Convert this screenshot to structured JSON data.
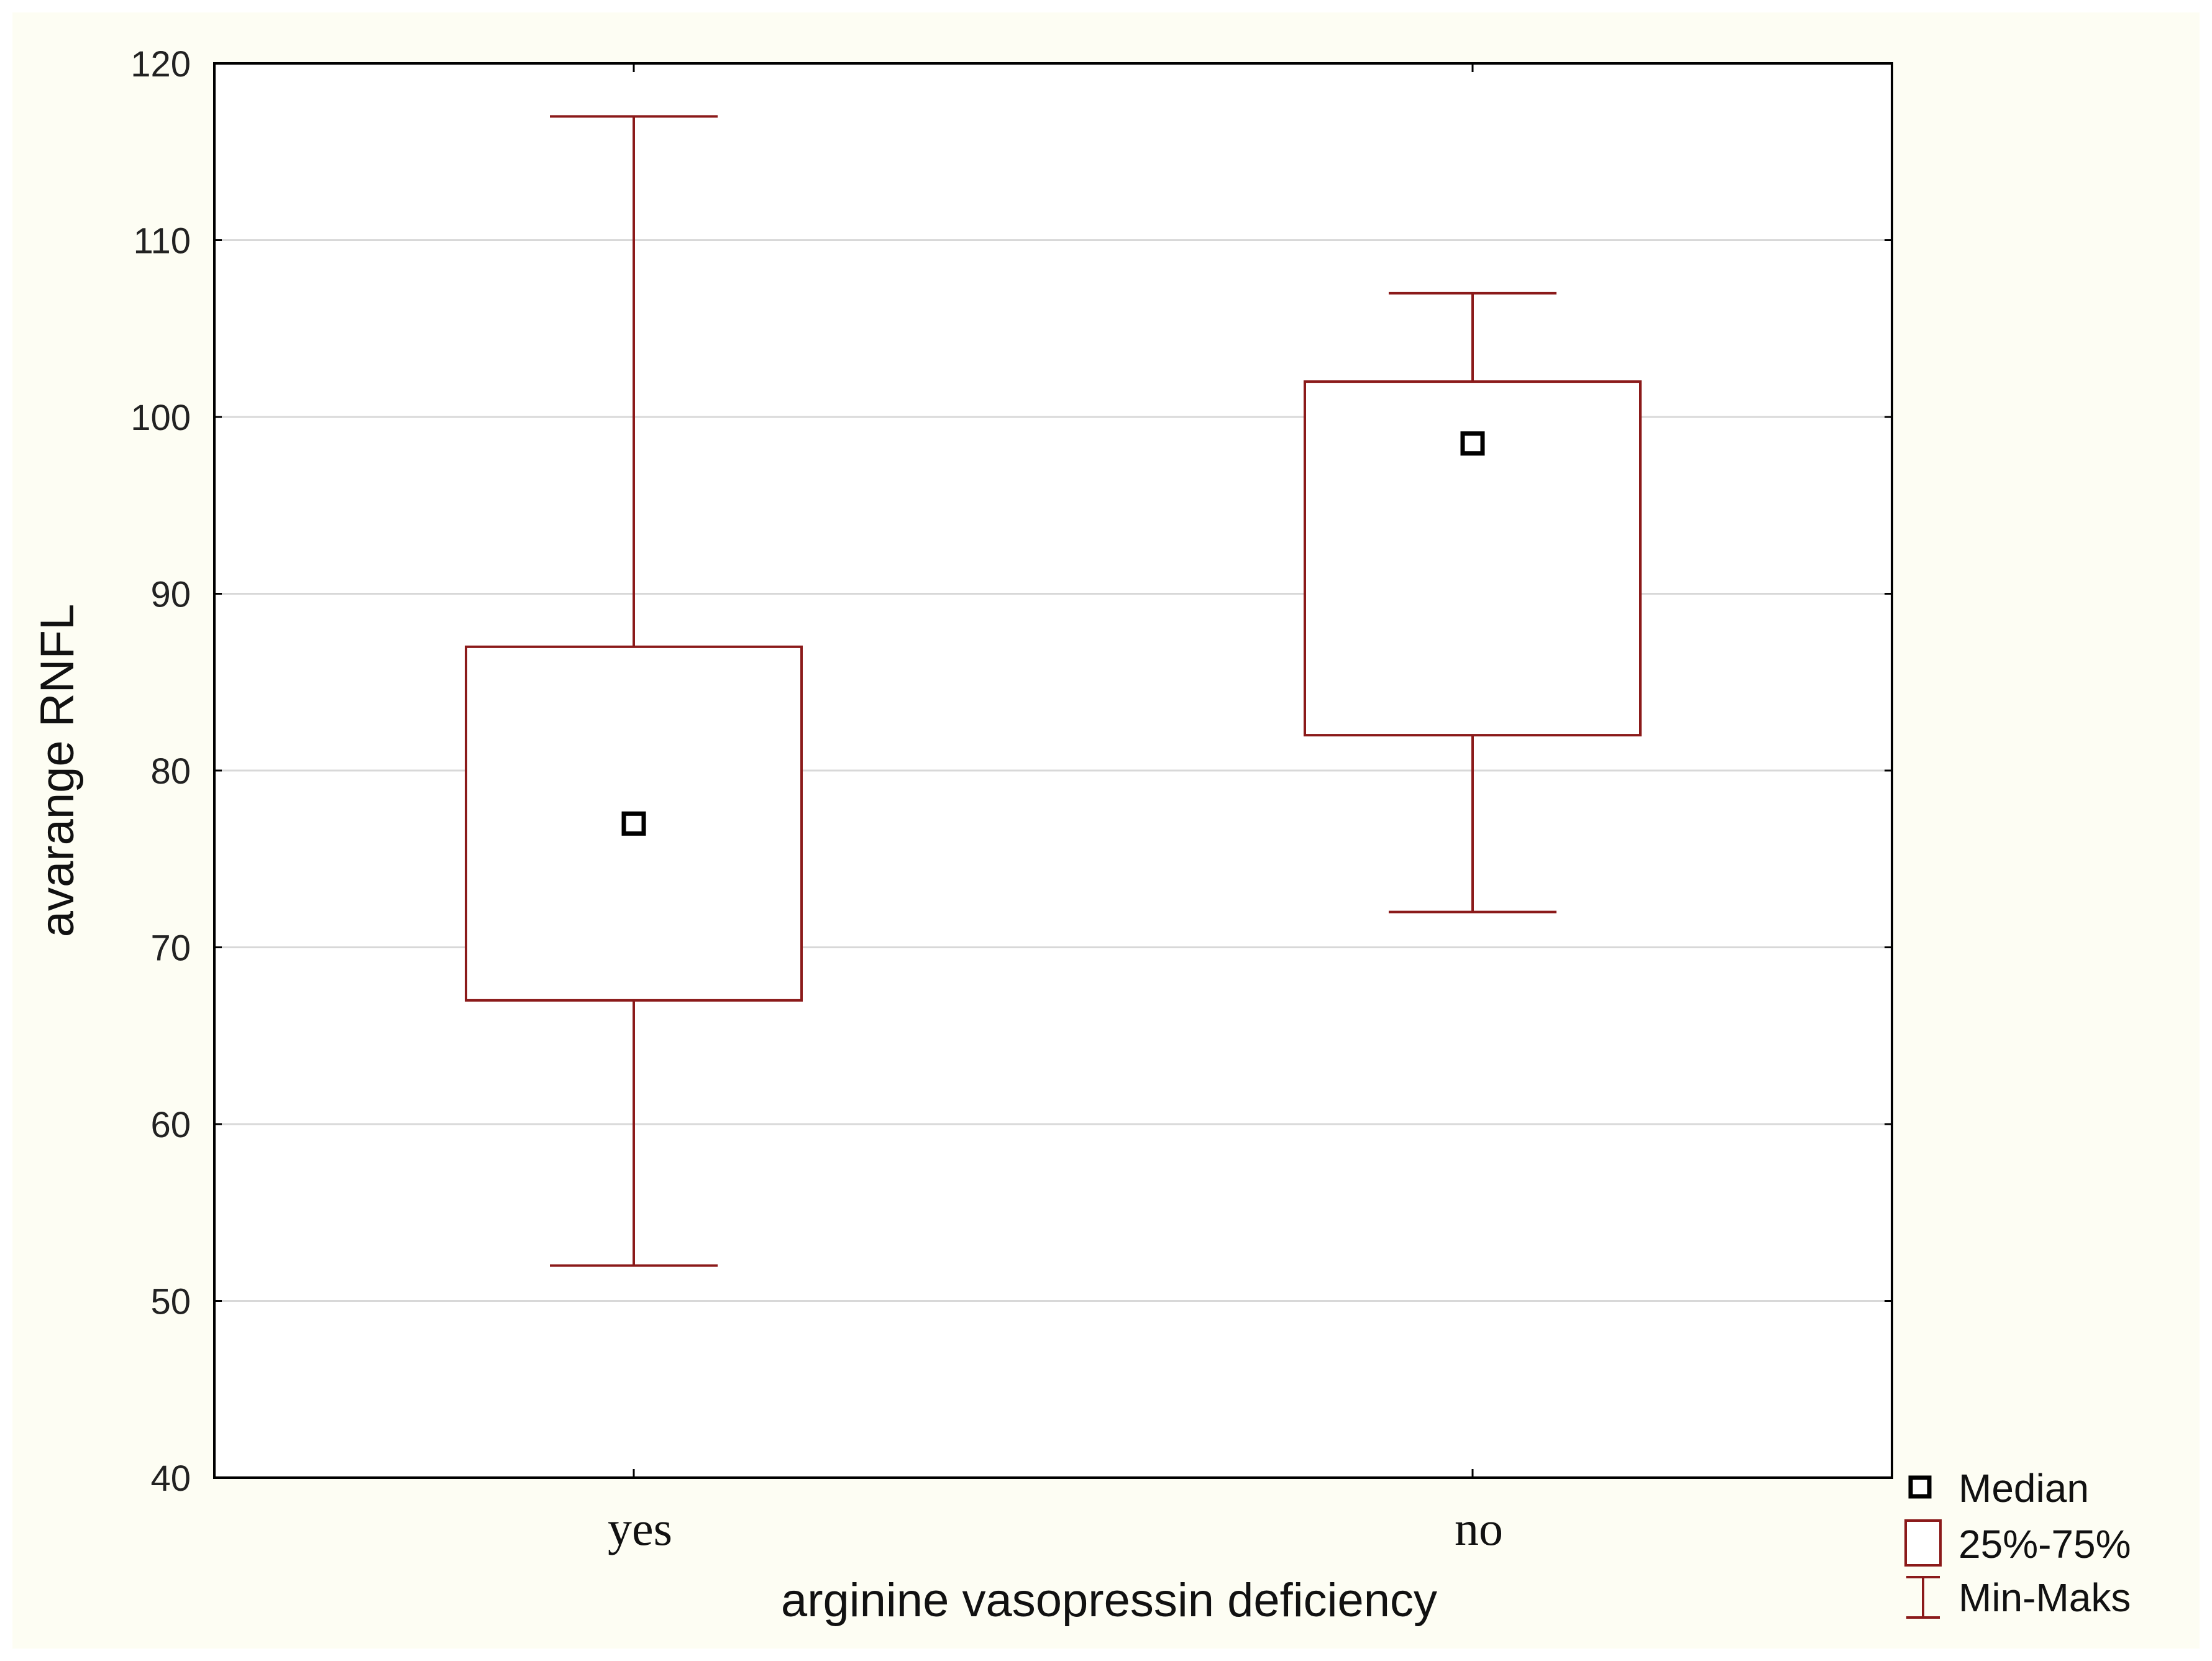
{
  "chart_data": {
    "type": "box",
    "xlabel": "arginine vasopressin deficiency",
    "ylabel": "avarange RNFL",
    "ylim": [
      40,
      120
    ],
    "yticks": [
      40,
      50,
      60,
      70,
      80,
      90,
      100,
      110,
      120
    ],
    "categories": [
      "yes",
      "no"
    ],
    "grid": true,
    "legend_position": "bottom-right",
    "legend": [
      "Median",
      "25%-75%",
      "Min-Maks"
    ],
    "boxes": [
      {
        "category": "yes",
        "min": 52,
        "q1": 67,
        "median": 77,
        "q3": 87,
        "max": 117
      },
      {
        "category": "no",
        "min": 72,
        "q1": 82,
        "median": 98.5,
        "q3": 102,
        "max": 107
      }
    ],
    "colors": {
      "box": "#8b1a1a",
      "median": "#000000",
      "grid": "#d8d8d8",
      "axis": "#000000"
    }
  }
}
